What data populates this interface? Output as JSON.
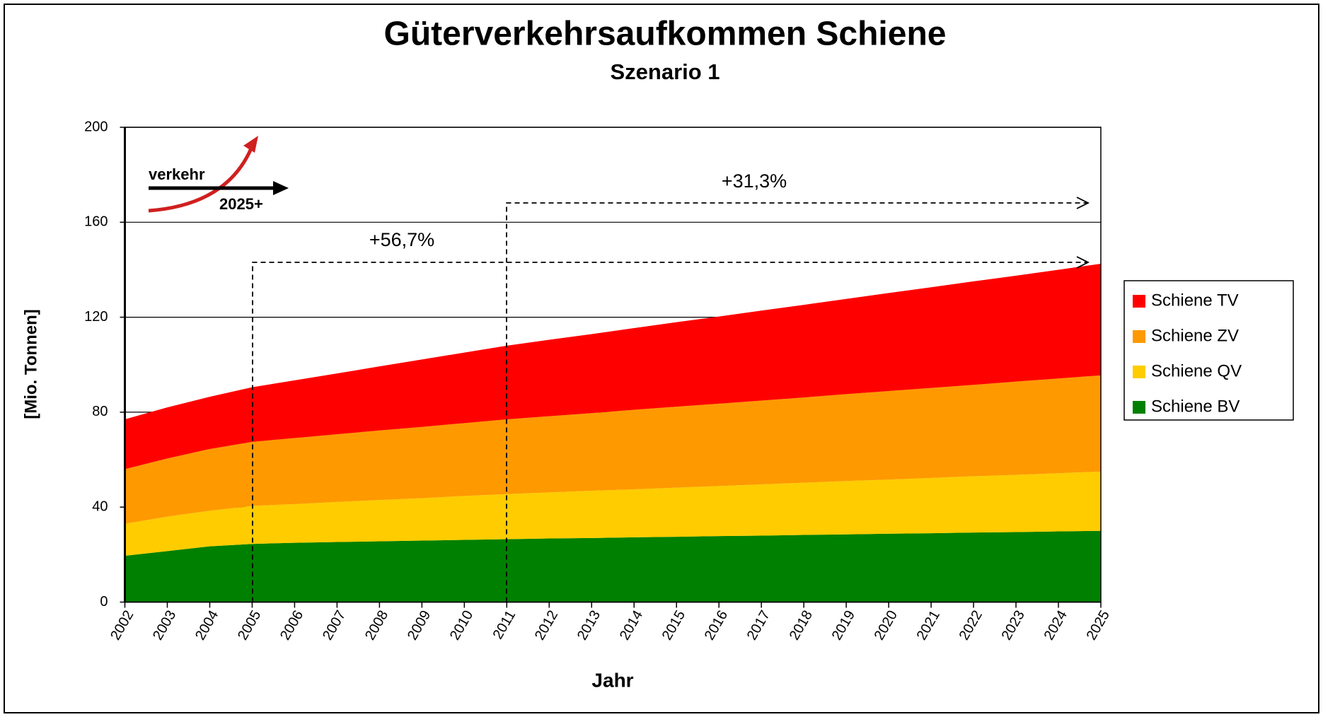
{
  "chart_data": {
    "type": "stacked_area",
    "title": "Güterverkehrsaufkommen Schiene",
    "subtitle": "Szenario 1",
    "x_label": "Jahr",
    "y_label": "[Mio. Tonnen]",
    "categories": [
      "2002",
      "2003",
      "2004",
      "2005",
      "2006",
      "2007",
      "2008",
      "2009",
      "2010",
      "2011",
      "2012",
      "2013",
      "2014",
      "2015",
      "2016",
      "2017",
      "2018",
      "2019",
      "2020",
      "2021",
      "2022",
      "2023",
      "2024",
      "2025"
    ],
    "series": [
      {
        "name": "Schiene BV",
        "color": "#008000",
        "values": [
          19.5,
          21.5,
          23.5,
          24.5,
          25,
          25.3,
          25.6,
          25.9,
          26.2,
          26.5,
          26.8,
          27,
          27.3,
          27.5,
          27.8,
          28,
          28.3,
          28.5,
          28.8,
          29,
          29.3,
          29.5,
          29.8,
          30
        ]
      },
      {
        "name": "Schiene QV",
        "color": "#ffcc00",
        "values": [
          13.5,
          14.5,
          15,
          16,
          16.3,
          16.9,
          17.4,
          17.9,
          18.5,
          19,
          19.4,
          19.9,
          20.2,
          20.7,
          21.1,
          21.6,
          22,
          22.5,
          22.8,
          23.3,
          23.7,
          24.1,
          24.5,
          25
        ]
      },
      {
        "name": "Schiene ZV",
        "color": "#ff9900",
        "values": [
          23,
          24.5,
          26,
          27,
          27.8,
          28.5,
          29.3,
          30,
          30.7,
          31.5,
          32.1,
          32.7,
          33.5,
          34.1,
          34.7,
          35.3,
          35.9,
          36.6,
          37.3,
          37.9,
          38.5,
          39.3,
          39.9,
          40.5
        ]
      },
      {
        "name": "Schiene TV",
        "color": "#ff0000",
        "values": [
          21,
          21.5,
          22,
          23,
          24.3,
          25.6,
          27,
          28.4,
          29.7,
          31,
          32.2,
          33.3,
          34.4,
          35.6,
          36.7,
          37.9,
          39,
          40.1,
          41.3,
          42.4,
          43.6,
          44.6,
          45.8,
          47
        ]
      }
    ],
    "ylim": [
      0,
      200
    ],
    "yticks": [
      0,
      40,
      80,
      120,
      160,
      200
    ],
    "grid": true,
    "legend": "right",
    "annotations": [
      {
        "text": "+56,7%"
      },
      {
        "text": "+31,3%"
      }
    ],
    "logo": {
      "top": "verkehr",
      "bottom": "2025+"
    }
  }
}
